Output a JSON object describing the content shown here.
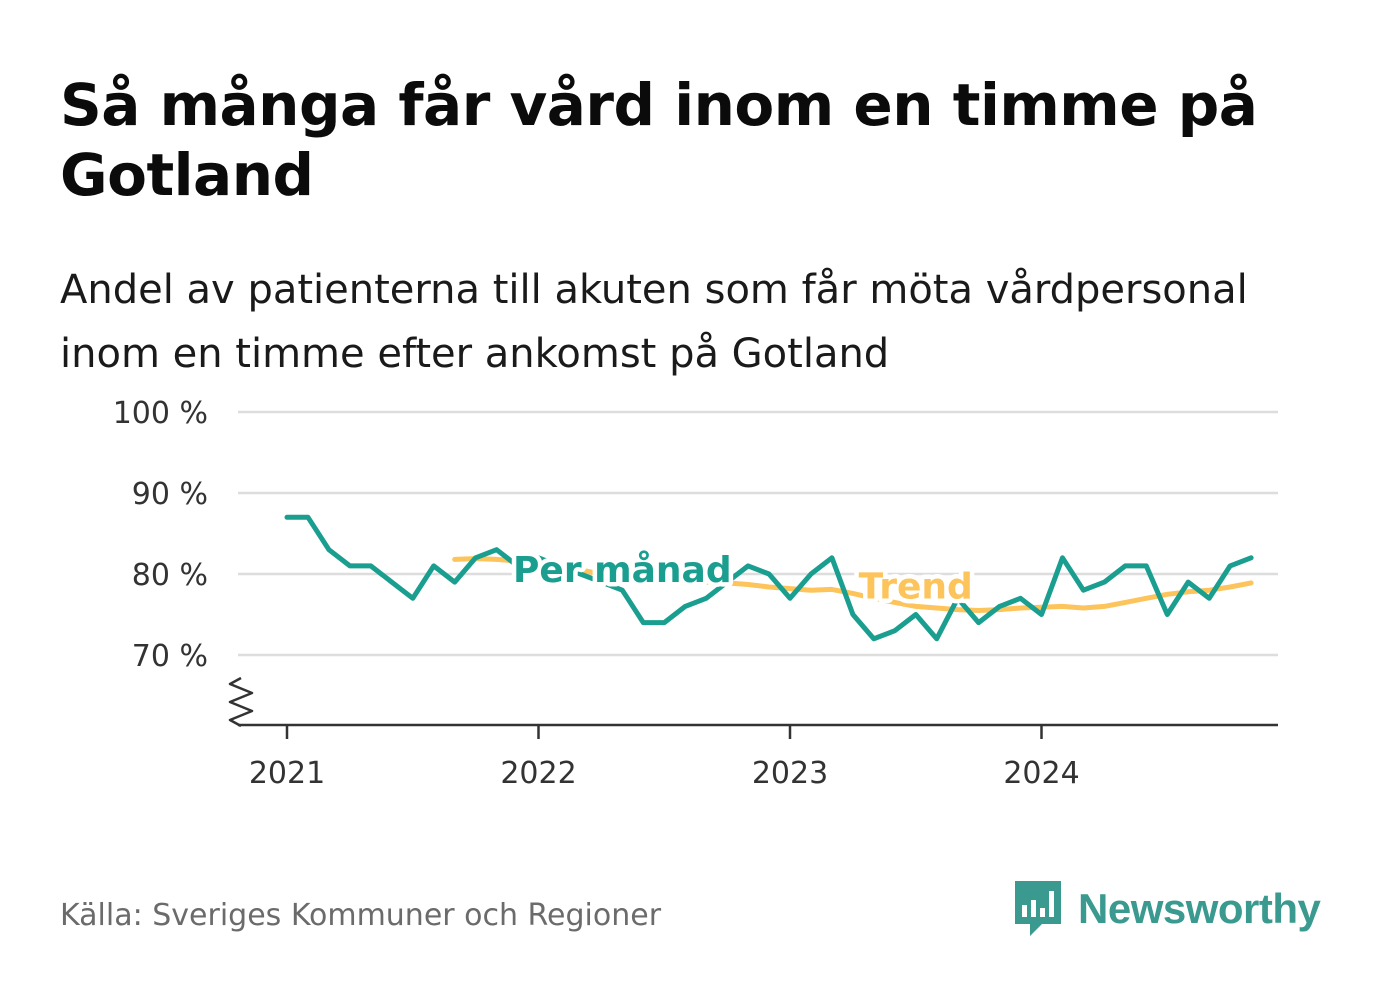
{
  "title": "Så många får vård inom en timme på Gotland",
  "subtitle": "Andel av patienterna till akuten som får möta vårdpersonal inom en timme efter ankomst på Gotland",
  "source": "Källa: Sveriges Kommuner och Regioner",
  "brand": {
    "name": "Newsworthy",
    "icon": "newsworthy-logo-icon",
    "color": "#3a9a8f"
  },
  "colors": {
    "monthly": "#1a9e8f",
    "trend": "#fcc45a",
    "grid": "#dddddd",
    "axis": "#333333"
  },
  "chart_data": {
    "type": "line",
    "title": "Så många får vård inom en timme på Gotland",
    "subtitle": "Andel av patienterna till akuten som får möta vårdpersonal inom en timme efter ankomst på Gotland",
    "xlabel": "",
    "ylabel": "",
    "ylim": [
      61,
      100
    ],
    "y_ticks": [
      70,
      80,
      90,
      100
    ],
    "y_tick_labels": [
      "70 %",
      "80 %",
      "90 %",
      "100 %"
    ],
    "y_axis_break": true,
    "x_ticks": [
      "2021-01",
      "2022-01",
      "2023-01",
      "2024-01"
    ],
    "x_tick_labels": [
      "2021",
      "2022",
      "2023",
      "2024"
    ],
    "grid": "horizontal",
    "legend": "inline labels",
    "series": [
      {
        "name": "Per månad",
        "label_at": "2022-05",
        "points": [
          [
            "2021-01",
            87
          ],
          [
            "2021-02",
            87
          ],
          [
            "2021-03",
            83
          ],
          [
            "2021-04",
            81
          ],
          [
            "2021-05",
            81
          ],
          [
            "2021-06",
            79
          ],
          [
            "2021-07",
            77
          ],
          [
            "2021-08",
            81
          ],
          [
            "2021-09",
            79
          ],
          [
            "2021-10",
            82
          ],
          [
            "2021-11",
            83
          ],
          [
            "2021-12",
            81
          ],
          [
            "2022-01",
            82
          ],
          [
            "2022-02",
            81
          ],
          [
            "2022-03",
            80
          ],
          [
            "2022-04",
            79
          ],
          [
            "2022-05",
            78
          ],
          [
            "2022-06",
            74
          ],
          [
            "2022-07",
            74
          ],
          [
            "2022-08",
            76
          ],
          [
            "2022-09",
            77
          ],
          [
            "2022-10",
            79
          ],
          [
            "2022-11",
            81
          ],
          [
            "2022-12",
            80
          ],
          [
            "2023-01",
            77
          ],
          [
            "2023-02",
            80
          ],
          [
            "2023-03",
            82
          ],
          [
            "2023-04",
            75
          ],
          [
            "2023-05",
            72
          ],
          [
            "2023-06",
            73
          ],
          [
            "2023-07",
            75
          ],
          [
            "2023-08",
            72
          ],
          [
            "2023-09",
            77
          ],
          [
            "2023-10",
            74
          ],
          [
            "2023-11",
            76
          ],
          [
            "2023-12",
            77
          ],
          [
            "2024-01",
            75
          ],
          [
            "2024-02",
            82
          ],
          [
            "2024-03",
            78
          ],
          [
            "2024-04",
            79
          ],
          [
            "2024-05",
            81
          ],
          [
            "2024-06",
            81
          ],
          [
            "2024-07",
            75
          ],
          [
            "2024-08",
            79
          ],
          [
            "2024-09",
            77
          ],
          [
            "2024-10",
            81
          ],
          [
            "2024-11",
            82
          ]
        ]
      },
      {
        "name": "Trend",
        "label_at": "2023-07",
        "points": [
          [
            "2021-09",
            81.8
          ],
          [
            "2021-10",
            81.9
          ],
          [
            "2021-11",
            81.8
          ],
          [
            "2021-12",
            81.6
          ],
          [
            "2022-01",
            81.3
          ],
          [
            "2022-02",
            80.9
          ],
          [
            "2022-03",
            80.5
          ],
          [
            "2022-04",
            80.0
          ],
          [
            "2022-05",
            79.6
          ],
          [
            "2022-06",
            79.2
          ],
          [
            "2022-07",
            79.0
          ],
          [
            "2022-08",
            79.0
          ],
          [
            "2022-09",
            79.0
          ],
          [
            "2022-10",
            78.9
          ],
          [
            "2022-11",
            78.7
          ],
          [
            "2022-12",
            78.4
          ],
          [
            "2023-01",
            78.2
          ],
          [
            "2023-02",
            78.0
          ],
          [
            "2023-03",
            78.1
          ],
          [
            "2023-04",
            77.6
          ],
          [
            "2023-05",
            77.0
          ],
          [
            "2023-06",
            76.5
          ],
          [
            "2023-07",
            76.0
          ],
          [
            "2023-08",
            75.8
          ],
          [
            "2023-09",
            75.6
          ],
          [
            "2023-10",
            75.5
          ],
          [
            "2023-11",
            75.6
          ],
          [
            "2023-12",
            75.8
          ],
          [
            "2024-01",
            75.9
          ],
          [
            "2024-02",
            76.0
          ],
          [
            "2024-03",
            75.8
          ],
          [
            "2024-04",
            76.0
          ],
          [
            "2024-05",
            76.5
          ],
          [
            "2024-06",
            77.0
          ],
          [
            "2024-07",
            77.5
          ],
          [
            "2024-08",
            77.8
          ],
          [
            "2024-09",
            78.0
          ],
          [
            "2024-10",
            78.4
          ],
          [
            "2024-11",
            78.9
          ]
        ]
      }
    ]
  }
}
